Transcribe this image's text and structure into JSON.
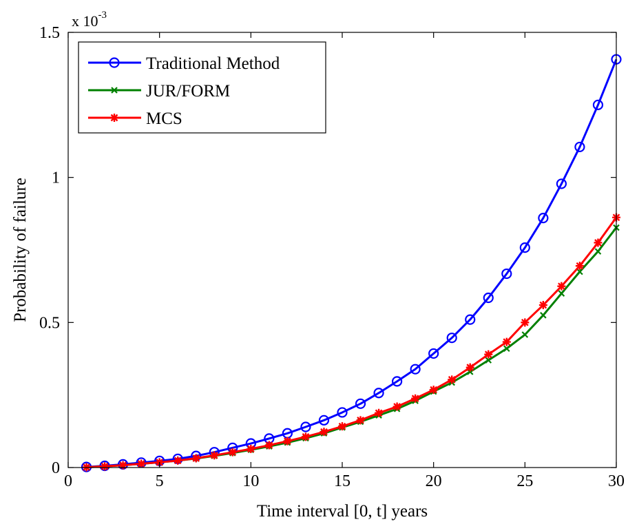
{
  "chart_data": {
    "type": "line",
    "title": "",
    "xlabel": "Time interval [0, t] years",
    "ylabel": "Probability of failure",
    "y_multiplier": {
      "base": "x 10",
      "exponent": "-3"
    },
    "xlim": [
      0,
      30
    ],
    "ylim": [
      0,
      1.5
    ],
    "xticks": [
      0,
      5,
      10,
      15,
      20,
      25,
      30
    ],
    "yticks": [
      0,
      0.5,
      1,
      1.5
    ],
    "xtick_labels": [
      "0",
      "5",
      "10",
      "15",
      "20",
      "25",
      "30"
    ],
    "ytick_labels": [
      "0",
      "0.5",
      "1",
      "1.5"
    ],
    "grid": false,
    "legend_position": "top-left",
    "x": [
      1,
      2,
      3,
      4,
      5,
      6,
      7,
      8,
      9,
      10,
      11,
      12,
      13,
      14,
      15,
      16,
      17,
      18,
      19,
      20,
      21,
      22,
      23,
      24,
      25,
      26,
      27,
      28,
      29,
      30
    ],
    "series": [
      {
        "name": "Traditional Method",
        "color": "#0000ff",
        "marker": "circle",
        "values": [
          0.002,
          0.006,
          0.011,
          0.017,
          0.023,
          0.03,
          0.04,
          0.053,
          0.068,
          0.083,
          0.1,
          0.118,
          0.14,
          0.163,
          0.19,
          0.22,
          0.257,
          0.297,
          0.339,
          0.393,
          0.447,
          0.51,
          0.585,
          0.668,
          0.758,
          0.86,
          0.978,
          1.105,
          1.25,
          1.407
        ]
      },
      {
        "name": "JUR/FORM",
        "color": "#008000",
        "marker": "x",
        "values": [
          0.001,
          0.004,
          0.008,
          0.013,
          0.018,
          0.024,
          0.031,
          0.04,
          0.05,
          0.061,
          0.073,
          0.086,
          0.101,
          0.118,
          0.138,
          0.158,
          0.18,
          0.202,
          0.23,
          0.262,
          0.293,
          0.33,
          0.37,
          0.41,
          0.458,
          0.525,
          0.6,
          0.675,
          0.745,
          0.827
        ]
      },
      {
        "name": "MCS",
        "color": "#ff0000",
        "marker": "star",
        "values": [
          0.001,
          0.004,
          0.008,
          0.013,
          0.018,
          0.024,
          0.032,
          0.042,
          0.053,
          0.064,
          0.077,
          0.091,
          0.106,
          0.123,
          0.142,
          0.163,
          0.188,
          0.21,
          0.238,
          0.268,
          0.303,
          0.345,
          0.39,
          0.433,
          0.5,
          0.56,
          0.625,
          0.695,
          0.775,
          0.862
        ]
      }
    ]
  }
}
